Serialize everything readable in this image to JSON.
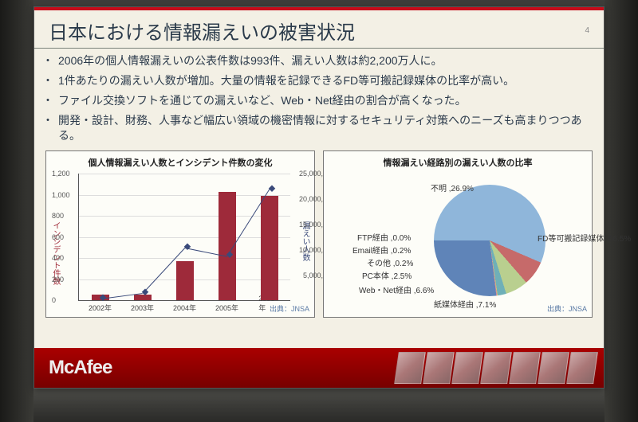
{
  "slide": {
    "page_number": "4",
    "title": "日本における情報漏えいの被害状況",
    "bullets": [
      "2006年の個人情報漏えいの公表件数は993件、漏えい人数は約2,200万人に。",
      "1件あたりの漏えい人数が増加。大量の情報を記録できるFD等可搬記録媒体の比率が高い。",
      "ファイル交換ソフトを通じての漏えいなど、Web・Net経由の割合が高くなった。",
      "開発・設計、財務、人事など幅広い領域の機密情報に対するセキュリティ対策へのニーズも高まりつつある。"
    ]
  },
  "chart_left": {
    "type": "bar+line",
    "title": "個人情報漏えい人数とインシデント件数の変化",
    "x_categories": [
      "2002年",
      "2003年",
      "2004年",
      "2005年",
      "2006年"
    ],
    "bars_label": "インシデント件数",
    "bars_values": [
      60,
      55,
      370,
      1030,
      990
    ],
    "bar_color": "#9e2a3a",
    "line_label": "漏えい人数",
    "line_values": [
      400000,
      1500000,
      10500000,
      8800000,
      22000000
    ],
    "line_color": "#3a4a7a",
    "y_left": {
      "min": 0,
      "max": 1200,
      "step": 200
    },
    "y_right": {
      "min": 0,
      "max": 25000000,
      "step": 5000000
    },
    "source": "出典：JNSA",
    "background": "#fdfdf8"
  },
  "chart_right": {
    "type": "pie",
    "title": "情報漏えい経路別の漏えい人数の比率",
    "slices": [
      {
        "label": "FD等可搬記録媒体",
        "value": 56.5,
        "color": "#8fb6da",
        "text": "FD等可搬記録媒体 ,56.5%"
      },
      {
        "label": "紙媒体経由",
        "value": 7.1,
        "color": "#c66a6a",
        "text": "紙媒体経由 ,7.1%"
      },
      {
        "label": "Web・Net経由",
        "value": 6.6,
        "color": "#b9cf8f",
        "text": "Web・Net経由 ,6.6%"
      },
      {
        "label": "PC本体",
        "value": 2.5,
        "color": "#6fb0b8",
        "text": "PC本体 ,2.5%"
      },
      {
        "label": "その他",
        "value": 0.2,
        "color": "#d8c070",
        "text": "その他 ,0.2%"
      },
      {
        "label": "Email経由",
        "value": 0.2,
        "color": "#c88aa8",
        "text": "Email経由 ,0.2%"
      },
      {
        "label": "FTP経由",
        "value": 0.0,
        "color": "#889fc6",
        "text": "FTP経由 ,0.0%"
      },
      {
        "label": "不明",
        "value": 26.9,
        "color": "#5f84b8",
        "text": "不明 ,26.9%"
      }
    ],
    "source": "出典：JNSA"
  },
  "footer": {
    "logo": "McAfee"
  },
  "colors": {
    "slide_bg": "#f3f0e5",
    "accent": "#c60c1a",
    "title": "#2a3a4a"
  }
}
